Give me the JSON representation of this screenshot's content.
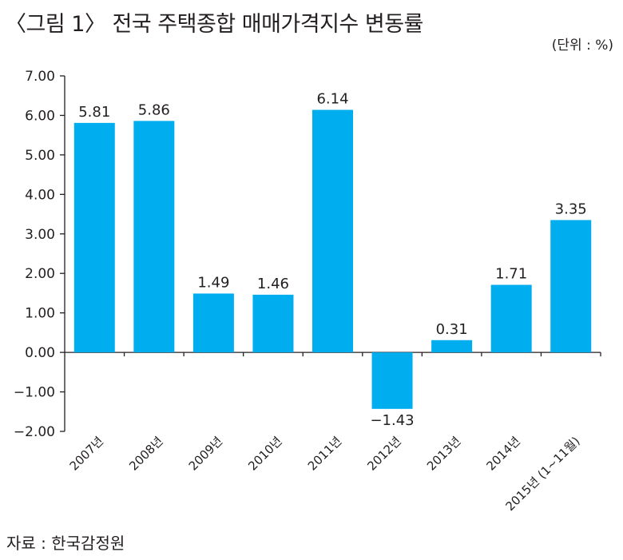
{
  "title": "〈그림 1〉 전국 주택종합 매매가격지수 변동률",
  "unit": "(단위 : %)",
  "source": "자료 : 한국감정원",
  "chart_data": {
    "type": "bar",
    "categories": [
      "2007년",
      "2008년",
      "2009년",
      "2010년",
      "2011년",
      "2012년",
      "2013년",
      "2014년",
      "2015년 (1~11월)"
    ],
    "values": [
      5.81,
      5.86,
      1.49,
      1.46,
      6.14,
      -1.43,
      0.31,
      1.71,
      3.35
    ],
    "value_labels": [
      "5.81",
      "5.86",
      "1.49",
      "1.46",
      "6.14",
      "−1.43",
      "0.31",
      "1.71",
      "3.35"
    ],
    "yticks": [
      "7.00",
      "6.00",
      "5.00",
      "4.00",
      "3.00",
      "2.00",
      "1.00",
      "0.00",
      "−1.00",
      "−2.00"
    ],
    "ylim": [
      -2,
      7
    ],
    "bar_color": "#00aeef",
    "grid": false
  }
}
